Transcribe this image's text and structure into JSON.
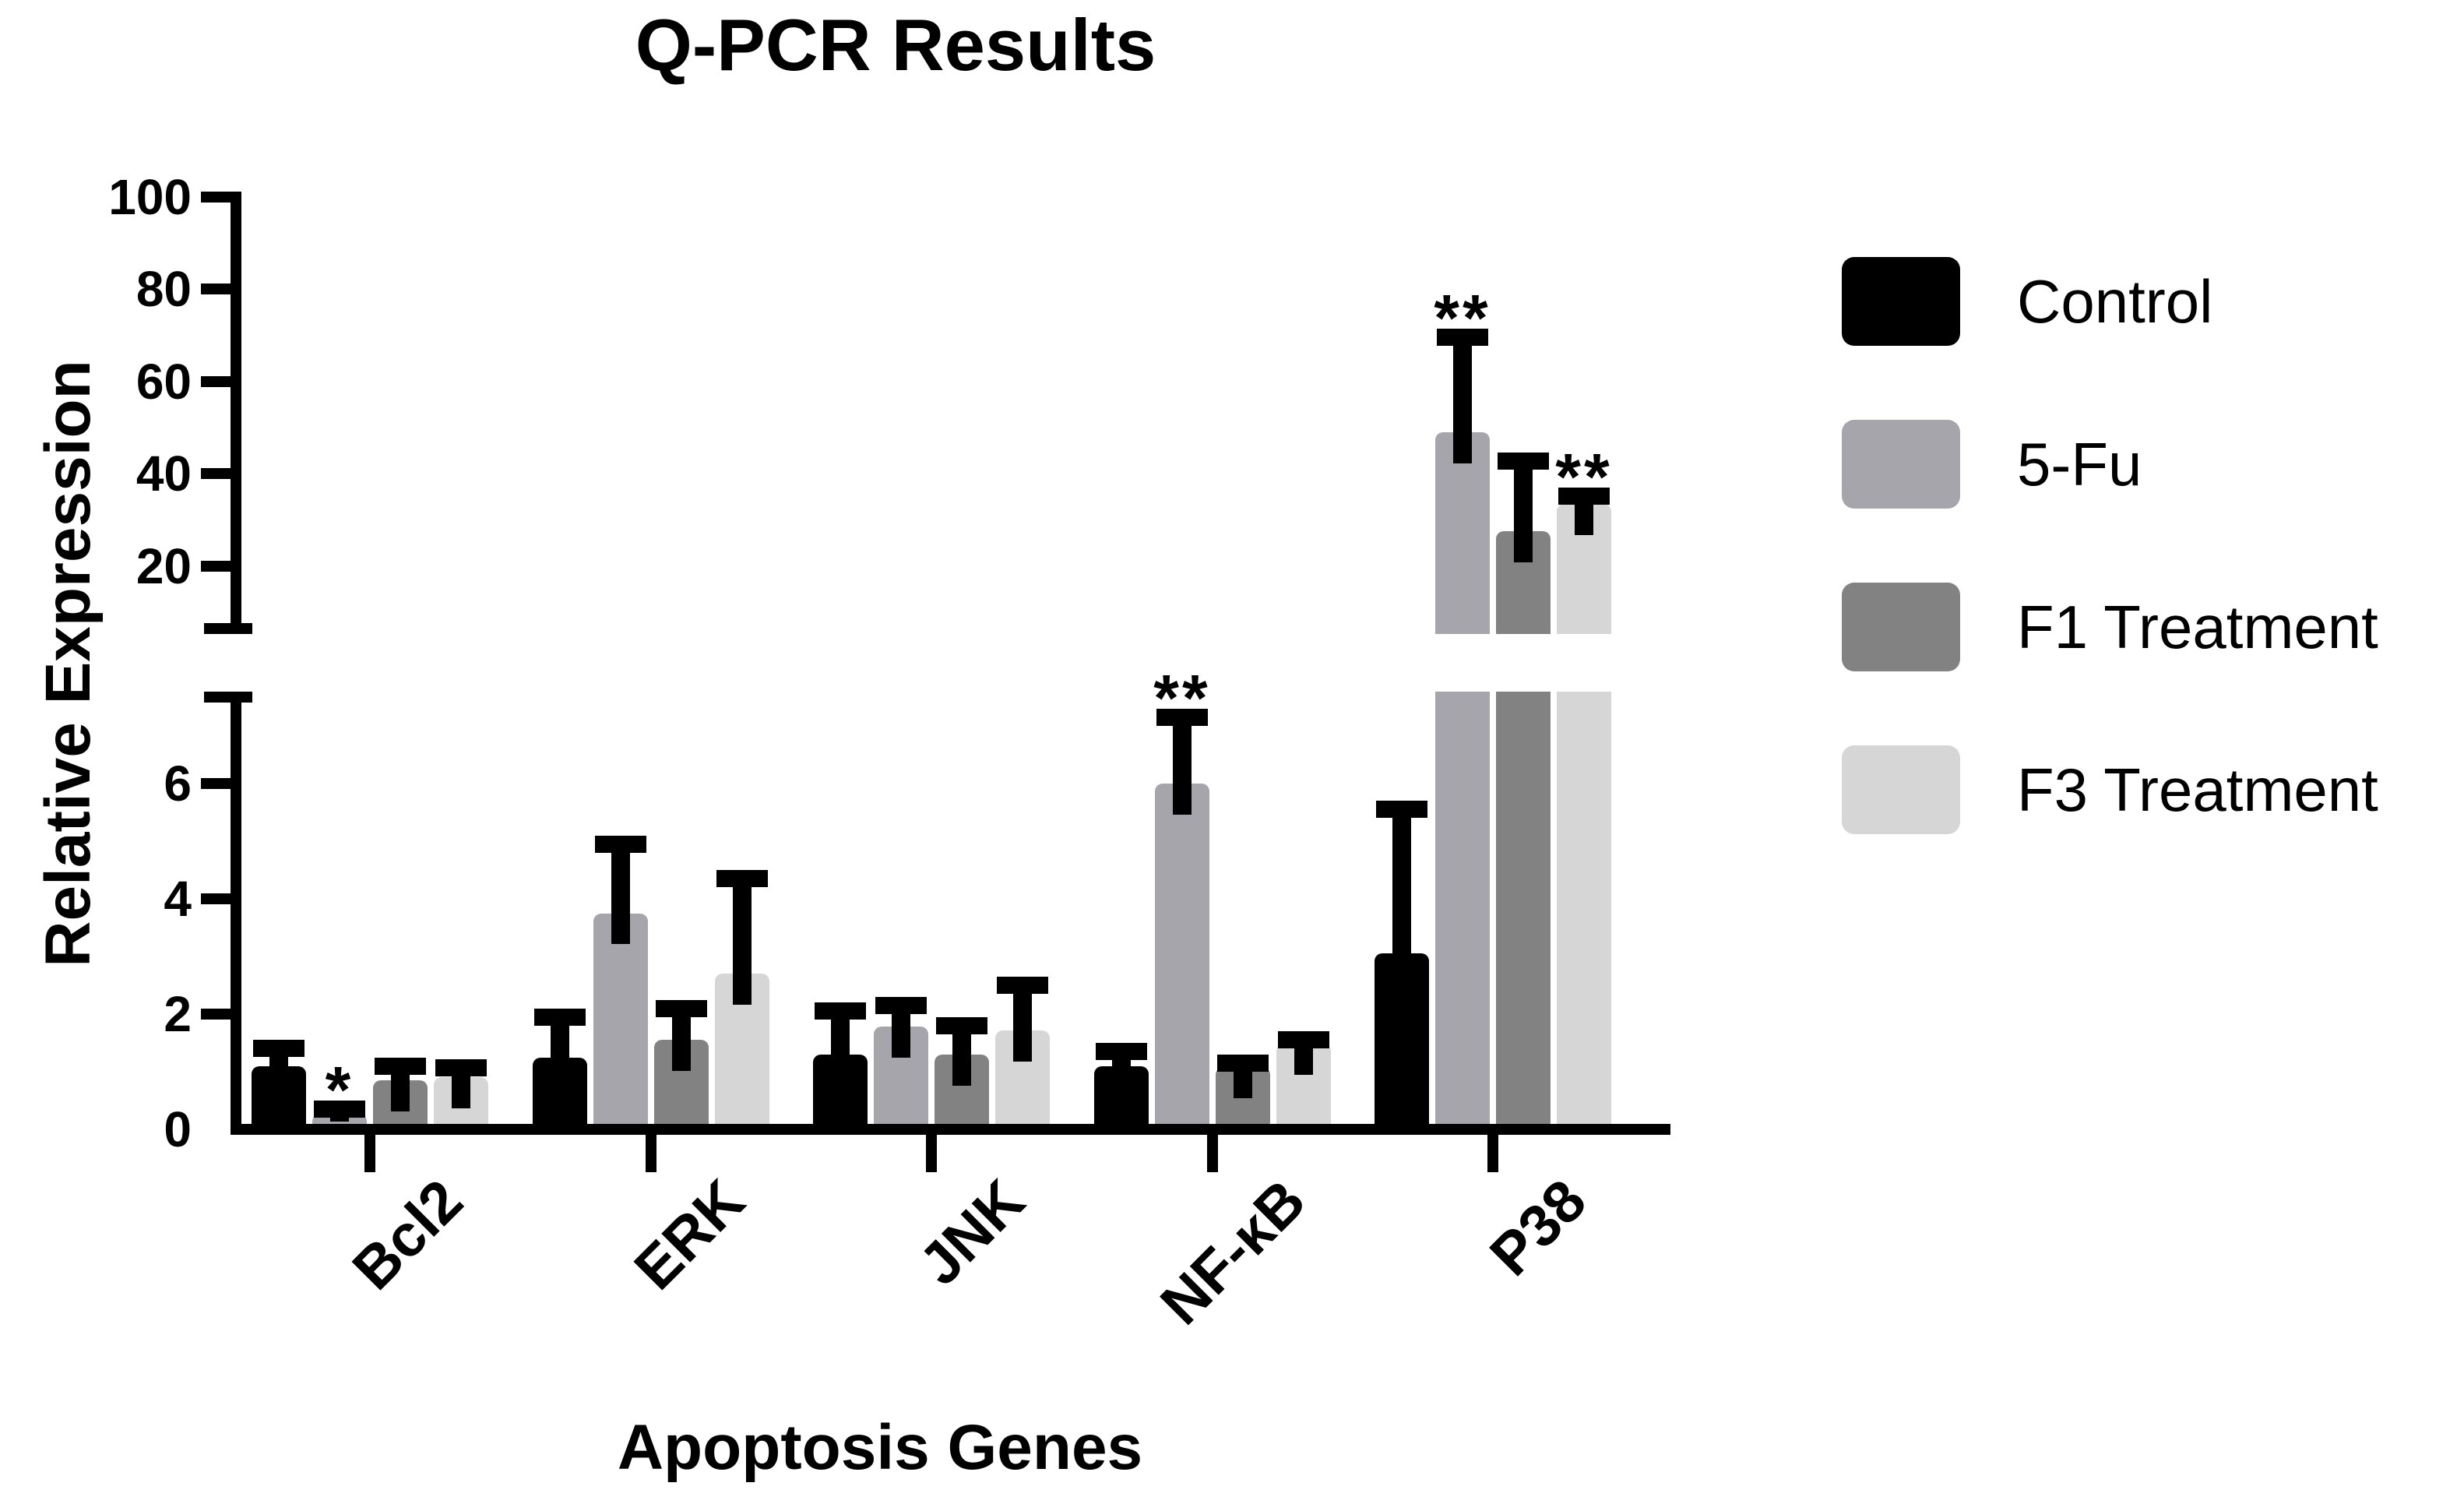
{
  "title": "Q-PCR Results",
  "y_axis": {
    "label": "Relative Expression"
  },
  "x_axis": {
    "label": "Apoptosis Genes"
  },
  "legend": {
    "items": [
      {
        "label": "Control",
        "color": "#000000"
      },
      {
        "label": "5-Fu",
        "color": "#a5a5ab"
      },
      {
        "label": "F1 Treatment",
        "color": "#828282"
      },
      {
        "label": "F3 Treatment",
        "color": "#d6d6d6"
      }
    ]
  },
  "chart_data": {
    "type": "bar",
    "title": "Q-PCR Results",
    "xlabel": "Apoptosis Genes",
    "ylabel": "Relative Expression",
    "categories": [
      "Bcl2",
      "ERK",
      "JNK",
      "NF-κB",
      "P38"
    ],
    "axis_break": {
      "lower_range": [
        0,
        7.5
      ],
      "upper_range": [
        8,
        100
      ],
      "lower_ticks": [
        0,
        2,
        4,
        6
      ],
      "upper_ticks": [
        20,
        40,
        60,
        80,
        100
      ]
    },
    "grid": false,
    "legend_position": "right",
    "series": [
      {
        "name": "Control",
        "color": "#000000",
        "values": [
          1.1,
          1.25,
          1.3,
          1.1,
          3.05
        ],
        "error_top": [
          1.55,
          2.1,
          2.2,
          1.5,
          5.7
        ]
      },
      {
        "name": "5-Fu",
        "color": "#a5a5ab",
        "values": [
          0.27,
          3.75,
          1.78,
          6.0,
          49.0
        ],
        "error_top": [
          0.5,
          5.1,
          2.3,
          7.3,
          71.5
        ]
      },
      {
        "name": "F1 Treatment",
        "color": "#828282",
        "values": [
          0.85,
          1.55,
          1.3,
          1.08,
          27.5
        ],
        "error_top": [
          1.25,
          2.25,
          1.95,
          1.3,
          44.5
        ]
      },
      {
        "name": "F3 Treatment",
        "color": "#d6d6d6",
        "values": [
          0.9,
          2.7,
          1.72,
          1.48,
          33.5
        ],
        "error_top": [
          1.22,
          4.5,
          2.65,
          1.7,
          37.0
        ]
      }
    ],
    "significance": [
      {
        "category": "Bcl2",
        "series": "5-Fu",
        "label": "*"
      },
      {
        "category": "NF-κB",
        "series": "5-Fu",
        "label": "**"
      },
      {
        "category": "P38",
        "series": "5-Fu",
        "label": "**"
      },
      {
        "category": "P38",
        "series": "F3 Treatment",
        "label": "**"
      }
    ]
  }
}
